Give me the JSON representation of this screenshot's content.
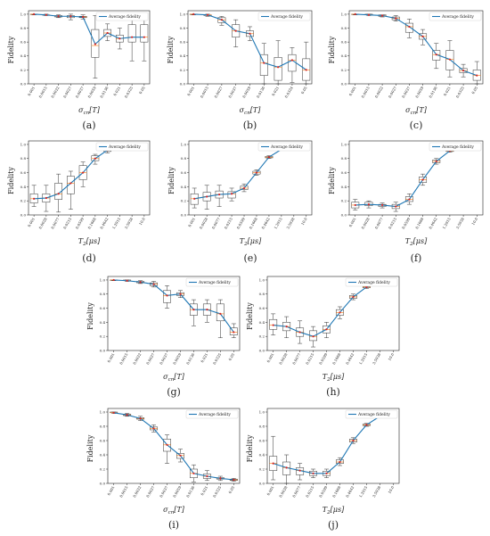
{
  "legend_label": "Average fidelity",
  "line_color": "#1f77b4",
  "marker_color": "#d62728",
  "chart_data": [
    {
      "type": "line",
      "caption": "(a)",
      "xlabel": "σ_cn[T]",
      "ylabel": "Fidelity",
      "categories": [
        "0.001",
        "0.0015",
        "0.0022",
        "0.0027",
        "0.0037",
        "0.0059",
        "0.0136",
        "0.021",
        "0.0325",
        "0.05"
      ],
      "yticks": [
        "0.0",
        "0.2",
        "0.4",
        "0.6",
        "0.8",
        "1.0"
      ],
      "ylim": [
        0,
        1.05
      ],
      "values": [
        1.0,
        0.99,
        0.97,
        0.97,
        0.96,
        0.57,
        0.73,
        0.65,
        0.67,
        0.67
      ],
      "box": [
        [
          0.99,
          1.0,
          1.0,
          1.0,
          1.0
        ],
        [
          0.98,
          0.99,
          0.99,
          0.99,
          1.0
        ],
        [
          0.95,
          0.96,
          0.97,
          0.98,
          0.99
        ],
        [
          0.92,
          0.95,
          0.97,
          0.98,
          1.0
        ],
        [
          0.93,
          0.95,
          0.96,
          0.97,
          0.99
        ],
        [
          0.08,
          0.38,
          0.55,
          0.78,
          0.98
        ],
        [
          0.62,
          0.68,
          0.73,
          0.78,
          0.86
        ],
        [
          0.5,
          0.6,
          0.65,
          0.7,
          0.8
        ],
        [
          0.33,
          0.6,
          0.67,
          0.85,
          0.95
        ],
        [
          0.33,
          0.6,
          0.67,
          0.85,
          0.95
        ]
      ]
    },
    {
      "type": "line",
      "caption": "(b)",
      "xlabel": "σ_cn[T]",
      "ylabel": "Fidelity",
      "categories": [
        "0.001",
        "0.0015",
        "0.0027",
        "0.0037",
        "0.0059",
        "0.0136",
        "0.021",
        "0.0324",
        "0.05"
      ],
      "yticks": [
        "0.0",
        "0.2",
        "0.4",
        "0.6",
        "0.8",
        "1.0"
      ],
      "ylim": [
        0,
        1.05
      ],
      "values": [
        1.0,
        0.99,
        0.92,
        0.76,
        0.72,
        0.3,
        0.24,
        0.34,
        0.2
      ],
      "box": [
        [
          0.99,
          1.0,
          1.0,
          1.0,
          1.0
        ],
        [
          0.97,
          0.98,
          0.99,
          0.99,
          1.0
        ],
        [
          0.84,
          0.88,
          0.92,
          0.95,
          0.97
        ],
        [
          0.53,
          0.67,
          0.76,
          0.85,
          0.92
        ],
        [
          0.62,
          0.68,
          0.72,
          0.76,
          0.82
        ],
        [
          0.0,
          0.12,
          0.3,
          0.42,
          0.58
        ],
        [
          0.0,
          0.05,
          0.24,
          0.38,
          0.62
        ],
        [
          0.02,
          0.18,
          0.34,
          0.42,
          0.52
        ],
        [
          0.0,
          0.05,
          0.2,
          0.36,
          0.6
        ]
      ]
    },
    {
      "type": "line",
      "caption": "(c)",
      "xlabel": "σ_cn[T]",
      "ylabel": "Fidelity",
      "categories": [
        "0.001",
        "0.0015",
        "0.0022",
        "0.0027",
        "0.0037",
        "0.0059",
        "0.0136",
        "0.021",
        "0.0325",
        "0.05"
      ],
      "yticks": [
        "0.0",
        "0.2",
        "0.4",
        "0.6",
        "0.8",
        "1.0"
      ],
      "ylim": [
        0,
        1.05
      ],
      "values": [
        1.0,
        0.99,
        0.98,
        0.94,
        0.82,
        0.68,
        0.42,
        0.35,
        0.19,
        0.12
      ],
      "box": [
        [
          0.99,
          1.0,
          1.0,
          1.0,
          1.0
        ],
        [
          0.98,
          0.99,
          0.99,
          1.0,
          1.0
        ],
        [
          0.96,
          0.97,
          0.98,
          0.99,
          0.99
        ],
        [
          0.9,
          0.92,
          0.94,
          0.96,
          0.98
        ],
        [
          0.66,
          0.74,
          0.82,
          0.87,
          0.93
        ],
        [
          0.56,
          0.64,
          0.68,
          0.72,
          0.78
        ],
        [
          0.22,
          0.34,
          0.42,
          0.48,
          0.58
        ],
        [
          0.1,
          0.2,
          0.35,
          0.48,
          0.62
        ],
        [
          0.1,
          0.16,
          0.19,
          0.22,
          0.28
        ],
        [
          0.0,
          0.05,
          0.12,
          0.2,
          0.32
        ]
      ]
    },
    {
      "type": "line",
      "caption": "(d)",
      "xlabel": "T_2[μs]",
      "ylabel": "Fidelity",
      "categories": [
        "0.001",
        "0.0028",
        "0.0077",
        "0.0215",
        "0.0599",
        "0.1668",
        "0.4642",
        "1.2915",
        "3.5938",
        "10.0"
      ],
      "yticks": [
        "0.0",
        "0.2",
        "0.4",
        "0.6",
        "0.8",
        "1.0"
      ],
      "ylim": [
        0,
        1.05
      ],
      "values": [
        0.23,
        0.24,
        0.3,
        0.45,
        0.6,
        0.8,
        0.92,
        0.97,
        0.99,
        1.0
      ],
      "box": [
        [
          0.12,
          0.17,
          0.23,
          0.3,
          0.42
        ],
        [
          0.05,
          0.18,
          0.24,
          0.3,
          0.42
        ],
        [
          0.04,
          0.22,
          0.3,
          0.45,
          0.58
        ],
        [
          0.08,
          0.3,
          0.45,
          0.55,
          0.62
        ],
        [
          0.4,
          0.5,
          0.6,
          0.7,
          0.75
        ],
        [
          0.72,
          0.77,
          0.8,
          0.84,
          0.86
        ],
        [
          0.88,
          0.9,
          0.92,
          0.93,
          0.95
        ],
        null,
        null,
        null
      ]
    },
    {
      "type": "line",
      "caption": "(e)",
      "xlabel": "T_2[μs]",
      "ylabel": "Fidelity",
      "categories": [
        "0.001",
        "0.0028",
        "0.0077",
        "0.0215",
        "0.0599",
        "0.1668",
        "0.4642",
        "1.2915",
        "3.5938",
        "10.0"
      ],
      "yticks": [
        "0.0",
        "0.2",
        "0.4",
        "0.6",
        "0.8",
        "1.0"
      ],
      "ylim": [
        0,
        1.05
      ],
      "values": [
        0.23,
        0.26,
        0.29,
        0.3,
        0.38,
        0.6,
        0.82,
        0.93,
        0.98,
        1.0
      ],
      "box": [
        [
          0.1,
          0.15,
          0.23,
          0.3,
          0.38
        ],
        [
          0.08,
          0.2,
          0.26,
          0.32,
          0.42
        ],
        [
          0.12,
          0.24,
          0.29,
          0.34,
          0.42
        ],
        [
          0.2,
          0.24,
          0.3,
          0.33,
          0.38
        ],
        [
          0.33,
          0.36,
          0.38,
          0.41,
          0.44
        ],
        [
          0.56,
          0.58,
          0.6,
          0.62,
          0.64
        ],
        [
          0.8,
          0.81,
          0.82,
          0.83,
          0.84
        ],
        null,
        null,
        null
      ]
    },
    {
      "type": "line",
      "caption": "(f)",
      "xlabel": "T_2[μs]",
      "ylabel": "Fidelity",
      "categories": [
        "0.001",
        "0.0028",
        "0.0077",
        "0.0215",
        "0.0599",
        "0.1668",
        "0.4642",
        "1.2915",
        "3.5938",
        "10.0"
      ],
      "yticks": [
        "0.0",
        "0.2",
        "0.4",
        "0.6",
        "0.8",
        "1.0"
      ],
      "ylim": [
        0,
        1.05
      ],
      "values": [
        0.14,
        0.15,
        0.14,
        0.12,
        0.22,
        0.5,
        0.76,
        0.91,
        0.97,
        1.0
      ],
      "box": [
        [
          0.07,
          0.1,
          0.14,
          0.18,
          0.22
        ],
        [
          0.1,
          0.13,
          0.15,
          0.18,
          0.2
        ],
        [
          0.1,
          0.12,
          0.14,
          0.15,
          0.17
        ],
        [
          0.05,
          0.09,
          0.12,
          0.15,
          0.18
        ],
        [
          0.15,
          0.19,
          0.22,
          0.26,
          0.3
        ],
        [
          0.42,
          0.46,
          0.5,
          0.54,
          0.58
        ],
        [
          0.72,
          0.74,
          0.76,
          0.78,
          0.8
        ],
        [
          0.89,
          0.9,
          0.91,
          0.92,
          0.93
        ],
        null,
        null
      ]
    },
    {
      "type": "line",
      "caption": "(g)",
      "xlabel": "σ_cn[T]",
      "ylabel": "Fidelity",
      "categories": [
        "0.001",
        "0.0015",
        "0.0022",
        "0.0027",
        "0.0037",
        "0.0059",
        "0.0136",
        "0.021",
        "0.0325",
        "0.05"
      ],
      "yticks": [
        "0.0",
        "0.2",
        "0.4",
        "0.6",
        "0.8",
        "1.0"
      ],
      "ylim": [
        0,
        1.05
      ],
      "values": [
        1.0,
        0.99,
        0.97,
        0.94,
        0.78,
        0.8,
        0.58,
        0.58,
        0.52,
        0.26
      ],
      "box": [
        [
          0.99,
          1.0,
          1.0,
          1.0,
          1.0
        ],
        [
          0.98,
          0.99,
          0.99,
          1.0,
          1.0
        ],
        [
          0.95,
          0.96,
          0.97,
          0.98,
          0.99
        ],
        [
          0.9,
          0.92,
          0.94,
          0.96,
          0.98
        ],
        [
          0.6,
          0.68,
          0.78,
          0.85,
          0.92
        ],
        [
          0.75,
          0.78,
          0.8,
          0.82,
          0.85
        ],
        [
          0.35,
          0.5,
          0.58,
          0.66,
          0.72
        ],
        [
          0.4,
          0.5,
          0.58,
          0.66,
          0.72
        ],
        [
          0.18,
          0.42,
          0.52,
          0.66,
          0.72
        ],
        [
          0.18,
          0.22,
          0.26,
          0.32,
          0.38
        ]
      ]
    },
    {
      "type": "line",
      "caption": "(h)",
      "xlabel": "T_2[μs]",
      "ylabel": "Fidelity",
      "categories": [
        "0.001",
        "0.0028",
        "0.0077",
        "0.0215",
        "0.0599",
        "0.1668",
        "0.4642",
        "1.2915",
        "3.5938",
        "10.0"
      ],
      "yticks": [
        "0.0",
        "0.2",
        "0.4",
        "0.6",
        "0.8",
        "1.0"
      ],
      "ylim": [
        0,
        1.05
      ],
      "values": [
        0.36,
        0.34,
        0.26,
        0.2,
        0.3,
        0.54,
        0.76,
        0.9,
        0.97,
        1.0
      ],
      "box": [
        [
          0.22,
          0.3,
          0.36,
          0.44,
          0.52
        ],
        [
          0.18,
          0.28,
          0.34,
          0.4,
          0.48
        ],
        [
          0.1,
          0.2,
          0.26,
          0.32,
          0.42
        ],
        [
          0.05,
          0.14,
          0.2,
          0.28,
          0.34
        ],
        [
          0.18,
          0.25,
          0.3,
          0.35,
          0.4
        ],
        [
          0.45,
          0.5,
          0.54,
          0.58,
          0.62
        ],
        [
          0.72,
          0.74,
          0.76,
          0.78,
          0.8
        ],
        [
          0.88,
          0.89,
          0.9,
          0.91,
          0.92
        ],
        null,
        null
      ]
    },
    {
      "type": "line",
      "caption": "(i)",
      "xlabel": "σ_cn[T]",
      "ylabel": "Fidelity",
      "categories": [
        "0.001",
        "0.0015",
        "0.0022",
        "0.0027",
        "0.0037",
        "0.0059",
        "0.0136",
        "0.021",
        "0.0325",
        "0.05"
      ],
      "yticks": [
        "0.0",
        "0.2",
        "0.4",
        "0.6",
        "0.8",
        "1.0"
      ],
      "ylim": [
        0,
        1.05
      ],
      "values": [
        0.99,
        0.96,
        0.91,
        0.77,
        0.54,
        0.39,
        0.14,
        0.1,
        0.07,
        0.05
      ],
      "box": [
        [
          0.98,
          0.99,
          0.99,
          1.0,
          1.0
        ],
        [
          0.94,
          0.95,
          0.96,
          0.97,
          0.98
        ],
        [
          0.88,
          0.9,
          0.91,
          0.92,
          0.94
        ],
        [
          0.72,
          0.75,
          0.77,
          0.79,
          0.82
        ],
        [
          0.28,
          0.45,
          0.54,
          0.62,
          0.68
        ],
        [
          0.3,
          0.35,
          0.39,
          0.42,
          0.48
        ],
        [
          0.02,
          0.08,
          0.14,
          0.2,
          0.26
        ],
        [
          0.04,
          0.07,
          0.1,
          0.13,
          0.18
        ],
        [
          0.04,
          0.06,
          0.07,
          0.08,
          0.1
        ],
        [
          0.03,
          0.04,
          0.05,
          0.06,
          0.07
        ]
      ]
    },
    {
      "type": "line",
      "caption": "(j)",
      "xlabel": "T_2[μs]",
      "ylabel": "Fidelity",
      "categories": [
        "0.001",
        "0.0028",
        "0.0077",
        "0.0215",
        "0.0599",
        "0.1668",
        "0.4642",
        "1.2915",
        "3.5938",
        "10.0"
      ],
      "yticks": [
        "0.0",
        "0.2",
        "0.4",
        "0.6",
        "0.8",
        "1.0"
      ],
      "ylim": [
        0,
        1.05
      ],
      "values": [
        0.28,
        0.22,
        0.18,
        0.14,
        0.14,
        0.3,
        0.6,
        0.82,
        0.94,
        0.98
      ],
      "box": [
        [
          0.05,
          0.18,
          0.28,
          0.38,
          0.66
        ],
        [
          0.0,
          0.12,
          0.22,
          0.3,
          0.4
        ],
        [
          0.05,
          0.12,
          0.18,
          0.22,
          0.28
        ],
        [
          0.08,
          0.11,
          0.14,
          0.17,
          0.2
        ],
        [
          0.08,
          0.11,
          0.14,
          0.17,
          0.2
        ],
        [
          0.25,
          0.28,
          0.3,
          0.33,
          0.36
        ],
        [
          0.56,
          0.58,
          0.6,
          0.62,
          0.64
        ],
        [
          0.8,
          0.81,
          0.82,
          0.83,
          0.84
        ],
        null,
        null
      ]
    }
  ]
}
